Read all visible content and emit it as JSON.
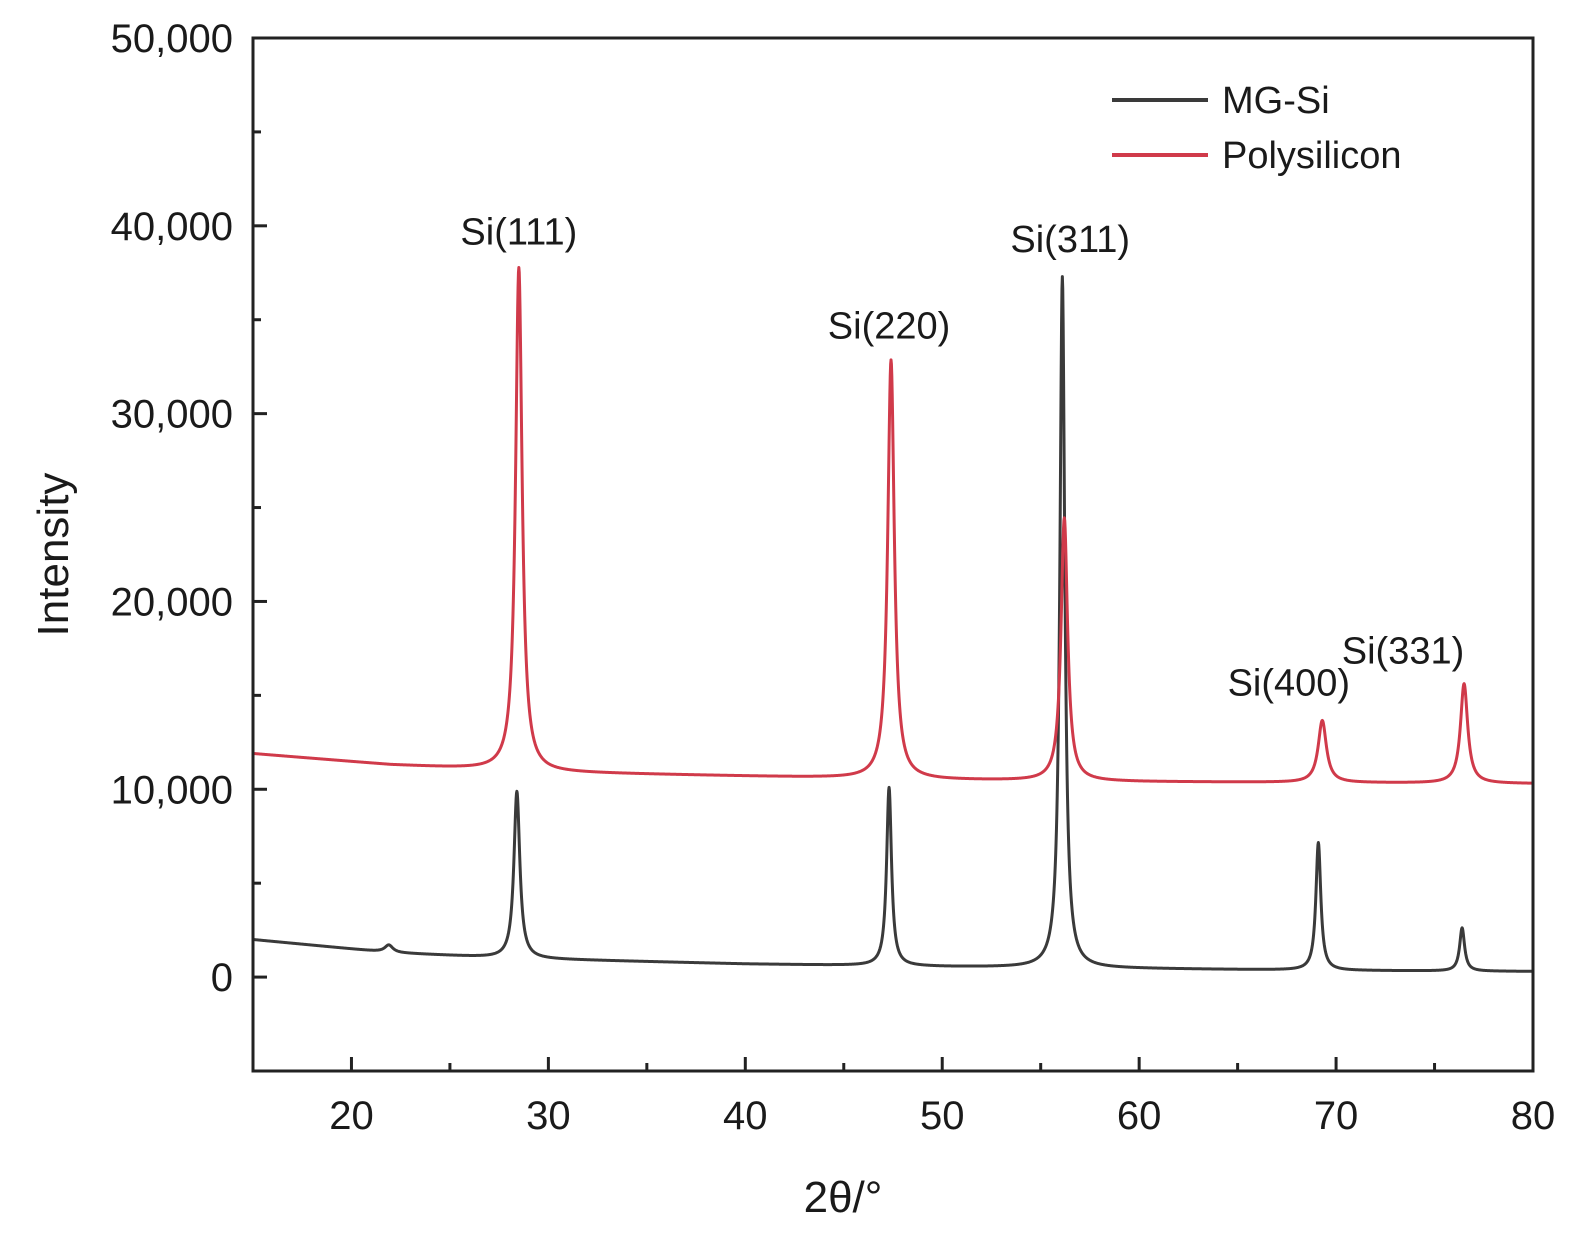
{
  "chart_data": {
    "type": "line",
    "title": "",
    "xlabel": "2θ/°",
    "ylabel": "Intensity",
    "xlim": [
      15,
      80
    ],
    "ylim": [
      -5000,
      50000
    ],
    "xticks": [
      20,
      30,
      40,
      50,
      60,
      70,
      80
    ],
    "xtick_labels": [
      "20",
      "30",
      "40",
      "50",
      "60",
      "70",
      "80"
    ],
    "yticks": [
      0,
      10000,
      20000,
      30000,
      40000,
      50000
    ],
    "ytick_labels": [
      "0",
      "10,000",
      "20,000",
      "30,000",
      "40,000",
      "50,000"
    ],
    "grid": false,
    "legend_position": "top-right",
    "series": [
      {
        "name": "MG-Si",
        "color": "#3a3a3a",
        "baseline": [
          [
            15,
            2000
          ],
          [
            22,
            1300
          ],
          [
            28,
            1000
          ],
          [
            40,
            700
          ],
          [
            50,
            550
          ],
          [
            60,
            450
          ],
          [
            70,
            350
          ],
          [
            80,
            300
          ]
        ],
        "peaks": [
          {
            "x": 21.9,
            "h": 400,
            "w": 0.25
          },
          {
            "x": 28.4,
            "h": 8900,
            "w": 0.18
          },
          {
            "x": 47.3,
            "h": 9500,
            "w": 0.15
          },
          {
            "x": 56.1,
            "h": 36800,
            "w": 0.15
          },
          {
            "x": 69.1,
            "h": 6800,
            "w": 0.15
          },
          {
            "x": 76.4,
            "h": 2300,
            "w": 0.15
          }
        ]
      },
      {
        "name": "Polysilicon",
        "color": "#d03a4a",
        "baseline": [
          [
            15,
            11900
          ],
          [
            22,
            11300
          ],
          [
            30,
            10900
          ],
          [
            40,
            10700
          ],
          [
            50,
            10500
          ],
          [
            60,
            10400
          ],
          [
            70,
            10350
          ],
          [
            80,
            10300
          ]
        ],
        "peaks": [
          {
            "x": 28.5,
            "h": 26800,
            "w": 0.2
          },
          {
            "x": 47.4,
            "h": 22300,
            "w": 0.2
          },
          {
            "x": 56.2,
            "h": 14000,
            "w": 0.2
          },
          {
            "x": 69.3,
            "h": 3300,
            "w": 0.25
          },
          {
            "x": 76.5,
            "h": 5300,
            "w": 0.22
          }
        ]
      }
    ],
    "annotations": [
      {
        "text": "Si(111)",
        "x": 28.5,
        "y": 39000
      },
      {
        "text": "Si(220)",
        "x": 47.3,
        "y": 34000
      },
      {
        "text": "Si(311)",
        "x": 56.5,
        "y": 38600
      },
      {
        "text": "Si(400)",
        "x": 67.6,
        "y": 15000
      },
      {
        "text": "Si(331)",
        "x": 73.4,
        "y": 16700
      }
    ]
  }
}
